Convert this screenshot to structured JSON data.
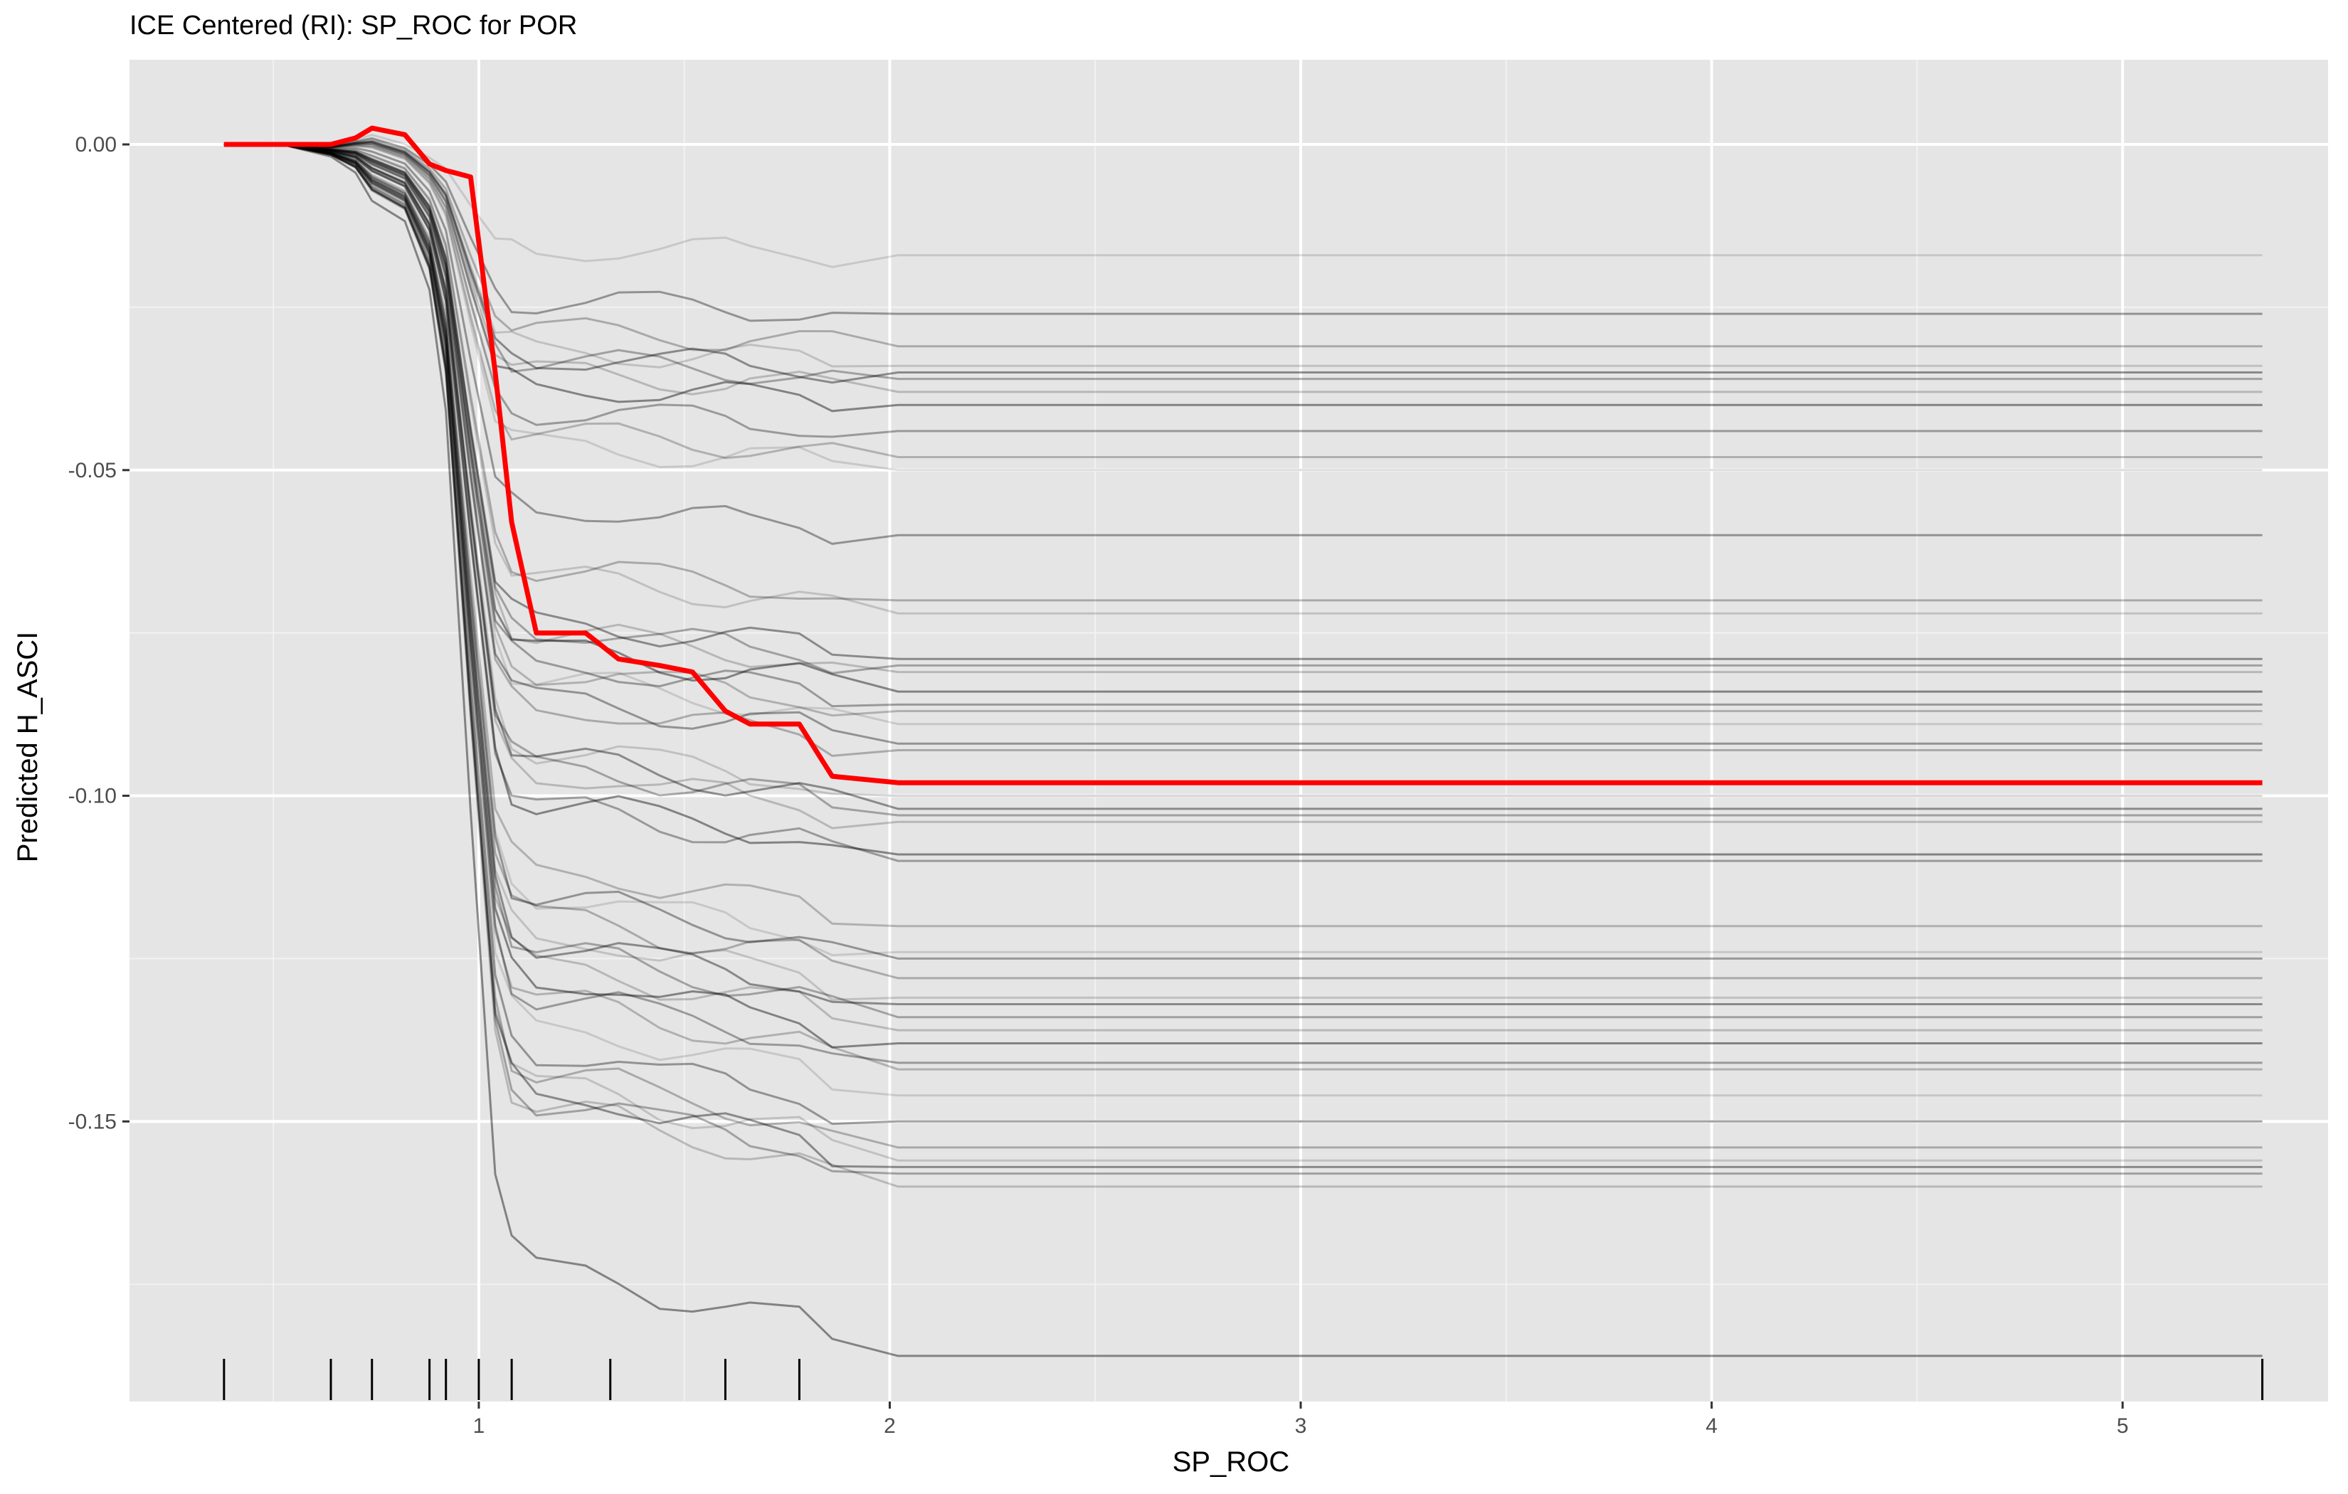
{
  "chart_data": {
    "type": "line",
    "title": "ICE Centered (RI): SP_ROC for POR",
    "xlabel": "SP_ROC",
    "ylabel": "Predicted H_ASCI",
    "xlim": [
      0.15,
      5.5
    ],
    "ylim": [
      -0.193,
      0.013
    ],
    "x_ticks": [
      1,
      2,
      3,
      4,
      5
    ],
    "x_tick_labels": [
      "1",
      "2",
      "3",
      "4",
      "5"
    ],
    "y_ticks": [
      0.0,
      -0.05,
      -0.1,
      -0.15
    ],
    "y_tick_labels": [
      "0.00",
      "-0.05",
      "-0.10",
      "-0.15"
    ],
    "grid": true,
    "legend": "none",
    "colors": {
      "panel": "#e5e5e5",
      "ice_line": "#000000",
      "centered_pdp": "#ff0000",
      "rug": "#000000"
    },
    "x": [
      0.38,
      0.52,
      0.64,
      0.7,
      0.74,
      0.82,
      0.88,
      0.92,
      0.98,
      1.04,
      1.08,
      1.14,
      1.26,
      1.34,
      1.44,
      1.52,
      1.6,
      1.66,
      1.78,
      1.86,
      2.02,
      5.34
    ],
    "rug_x": [
      0.38,
      0.64,
      0.74,
      0.88,
      0.92,
      1.0,
      1.08,
      1.32,
      1.6,
      1.78,
      5.34
    ],
    "shape_template": [
      0,
      0,
      0.01,
      0.03,
      0.06,
      0.07,
      0.12,
      0.22,
      0.55,
      0.85,
      0.91,
      0.93,
      0.93,
      0.935,
      0.95,
      0.955,
      0.96,
      0.965,
      0.97,
      0.99,
      1.0,
      1.0
    ],
    "ice_final_values": [
      -0.017,
      -0.026,
      -0.031,
      -0.034,
      -0.035,
      -0.036,
      -0.038,
      -0.04,
      -0.044,
      -0.048,
      -0.05,
      -0.06,
      -0.07,
      -0.072,
      -0.079,
      -0.08,
      -0.081,
      -0.084,
      -0.086,
      -0.087,
      -0.089,
      -0.092,
      -0.093,
      -0.1,
      -0.102,
      -0.103,
      -0.104,
      -0.109,
      -0.11,
      -0.12,
      -0.124,
      -0.125,
      -0.128,
      -0.131,
      -0.132,
      -0.134,
      -0.136,
      -0.138,
      -0.141,
      -0.142,
      -0.146,
      -0.15,
      -0.154,
      -0.156,
      -0.157,
      -0.158,
      -0.16,
      -0.186
    ],
    "centered_pdp": [
      0.0,
      0.0,
      0.0,
      0.001,
      0.0025,
      0.0015,
      -0.003,
      -0.004,
      -0.005,
      -0.035,
      -0.058,
      -0.075,
      -0.075,
      -0.079,
      -0.08,
      -0.081,
      -0.087,
      -0.089,
      -0.089,
      -0.097,
      -0.098,
      -0.098
    ]
  }
}
